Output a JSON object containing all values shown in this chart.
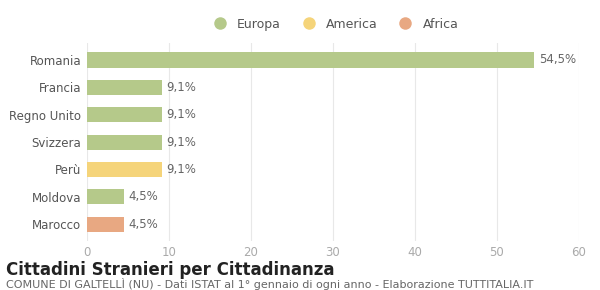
{
  "categories": [
    "Marocco",
    "Moldova",
    "Perù",
    "Svizzera",
    "Regno Unito",
    "Francia",
    "Romania"
  ],
  "values": [
    4.5,
    4.5,
    9.1,
    9.1,
    9.1,
    9.1,
    54.5
  ],
  "labels": [
    "4,5%",
    "4,5%",
    "9,1%",
    "9,1%",
    "9,1%",
    "9,1%",
    "54,5%"
  ],
  "colors": [
    "#e8a882",
    "#b5c98a",
    "#f5d47a",
    "#b5c98a",
    "#b5c98a",
    "#b5c98a",
    "#b5c98a"
  ],
  "legend_items": [
    {
      "label": "Europa",
      "color": "#b5c98a"
    },
    {
      "label": "America",
      "color": "#f5d47a"
    },
    {
      "label": "Africa",
      "color": "#e8a882"
    }
  ],
  "xlim": [
    0,
    60
  ],
  "xticks": [
    0,
    10,
    20,
    30,
    40,
    50,
    60
  ],
  "title": "Cittadini Stranieri per Cittadinanza",
  "subtitle": "COMUNE DI GALTELLÌ (NU) - Dati ISTAT al 1° gennaio di ogni anno - Elaborazione TUTTITALIA.IT",
  "background_color": "#ffffff",
  "grid_color": "#e8e8e8",
  "bar_height": 0.55,
  "title_fontsize": 12,
  "subtitle_fontsize": 8,
  "label_fontsize": 8.5,
  "tick_fontsize": 8.5,
  "legend_fontsize": 9
}
